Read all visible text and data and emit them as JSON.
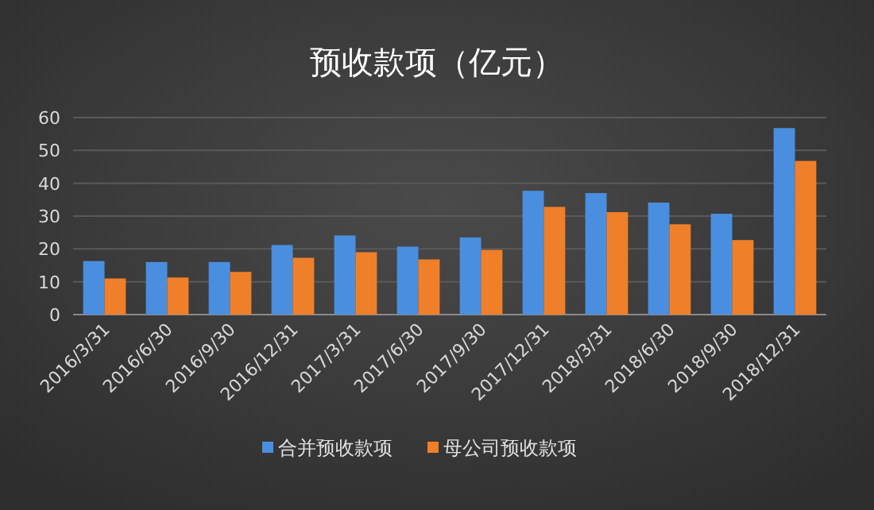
{
  "chart_data": {
    "type": "bar",
    "title": "预收款项（亿元）",
    "categories": [
      "2016/3/31",
      "2016/6/30",
      "2016/9/30",
      "2016/12/31",
      "2017/3/31",
      "2017/6/30",
      "2017/9/30",
      "2017/12/31",
      "2018/3/31",
      "2018/6/30",
      "2018/9/30",
      "2018/12/31"
    ],
    "series": [
      {
        "name": "合并预收款项",
        "color": "#4a8fdf",
        "values": [
          16.3,
          16,
          16,
          21.2,
          24.1,
          20.7,
          23.5,
          37.7,
          37,
          34.1,
          30.7,
          56.8
        ]
      },
      {
        "name": "母公司预收款项",
        "color": "#f07f2a",
        "values": [
          11,
          11.3,
          13,
          17.3,
          19,
          16.8,
          19.7,
          32.8,
          31.2,
          27.5,
          22.7,
          46.8
        ]
      }
    ],
    "ylim": [
      0,
      60
    ],
    "yticks": [
      0,
      10,
      20,
      30,
      40,
      50,
      60
    ],
    "grid": "y",
    "legend": "bottom"
  }
}
